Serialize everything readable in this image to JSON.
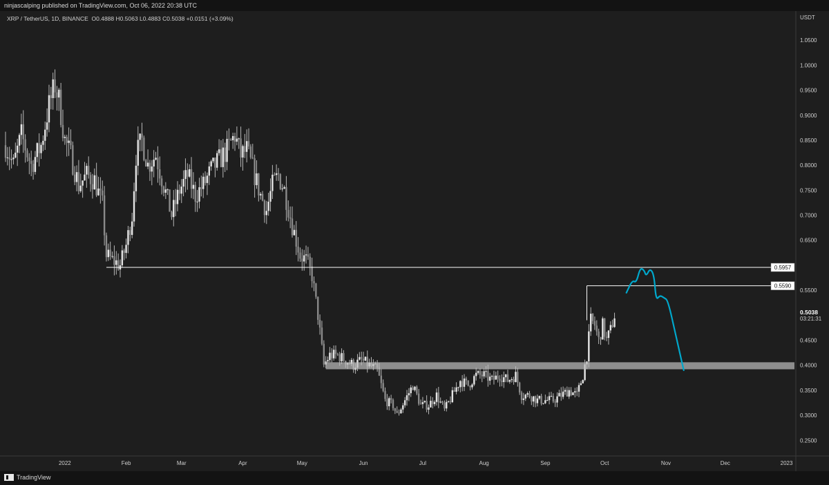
{
  "header": {
    "publisher_text": "ninjascalping published on TradingView.com, Oct 06, 2022 20:38 UTC"
  },
  "legend": {
    "pair": "XRP / TetherUS, 1D, BINANCE",
    "open": "O0.4888",
    "high": "H0.5063",
    "low": "L0.4883",
    "close": "C0.5038",
    "change": "+0.0151 (+3.09%)"
  },
  "footer": {
    "brand": "TradingView"
  },
  "colors": {
    "background": "#1e1e1e",
    "candle": "#b8b8b8",
    "level_line": "#ffffff",
    "drawing": "#00a8cc",
    "zone": "#bdbdbd"
  },
  "chart_data": {
    "type": "candlestick",
    "symbol": "XRP / TetherUS",
    "timeframe": "1D",
    "exchange": "BINANCE",
    "currency_label": "USDT",
    "ylim": [
      0.22,
      1.1
    ],
    "y_ticks": [
      "1.0500",
      "1.0000",
      "0.9500",
      "0.9000",
      "0.8500",
      "0.8000",
      "0.7500",
      "0.7000",
      "0.6500",
      "0.5500",
      "0.4500",
      "0.4000",
      "0.3500",
      "0.3000",
      "0.2500"
    ],
    "x_ticks": [
      {
        "label": "2022",
        "date": "2022-01-01"
      },
      {
        "label": "Feb",
        "date": "2022-02-01"
      },
      {
        "label": "Mar",
        "date": "2022-03-01"
      },
      {
        "label": "Apr",
        "date": "2022-04-01"
      },
      {
        "label": "May",
        "date": "2022-05-01"
      },
      {
        "label": "Jun",
        "date": "2022-06-01"
      },
      {
        "label": "Jul",
        "date": "2022-07-01"
      },
      {
        "label": "Aug",
        "date": "2022-08-01"
      },
      {
        "label": "Sep",
        "date": "2022-09-01"
      },
      {
        "label": "Oct",
        "date": "2022-10-01"
      },
      {
        "label": "Nov",
        "date": "2022-11-01"
      },
      {
        "label": "Dec",
        "date": "2022-12-01"
      },
      {
        "label": "2023",
        "date": "2023-01-01"
      }
    ],
    "x_range": [
      "2021-12-02",
      "2023-01-05"
    ],
    "price_path": [
      [
        "2021-12-02",
        0.84
      ],
      [
        "2021-12-06",
        0.8
      ],
      [
        "2021-12-10",
        0.86
      ],
      [
        "2021-12-15",
        0.8
      ],
      [
        "2021-12-20",
        0.84
      ],
      [
        "2021-12-24",
        0.92
      ],
      [
        "2021-12-27",
        0.96
      ],
      [
        "2021-12-29",
        0.93
      ],
      [
        "2022-01-01",
        0.85
      ],
      [
        "2022-01-04",
        0.82
      ],
      [
        "2022-01-08",
        0.76
      ],
      [
        "2022-01-12",
        0.78
      ],
      [
        "2022-01-16",
        0.77
      ],
      [
        "2022-01-20",
        0.72
      ],
      [
        "2022-01-22",
        0.62
      ],
      [
        "2022-01-25",
        0.61
      ],
      [
        "2022-01-29",
        0.6
      ],
      [
        "2022-02-01",
        0.64
      ],
      [
        "2022-02-04",
        0.7
      ],
      [
        "2022-02-06",
        0.82
      ],
      [
        "2022-02-09",
        0.85
      ],
      [
        "2022-02-12",
        0.8
      ],
      [
        "2022-02-16",
        0.82
      ],
      [
        "2022-02-20",
        0.76
      ],
      [
        "2022-02-24",
        0.7
      ],
      [
        "2022-02-28",
        0.75
      ],
      [
        "2022-03-04",
        0.78
      ],
      [
        "2022-03-08",
        0.74
      ],
      [
        "2022-03-12",
        0.76
      ],
      [
        "2022-03-16",
        0.79
      ],
      [
        "2022-03-20",
        0.81
      ],
      [
        "2022-03-24",
        0.83
      ],
      [
        "2022-03-28",
        0.86
      ],
      [
        "2022-03-31",
        0.82
      ],
      [
        "2022-04-03",
        0.83
      ],
      [
        "2022-04-07",
        0.78
      ],
      [
        "2022-04-10",
        0.74
      ],
      [
        "2022-04-13",
        0.71
      ],
      [
        "2022-04-16",
        0.76
      ],
      [
        "2022-04-19",
        0.78
      ],
      [
        "2022-04-22",
        0.75
      ],
      [
        "2022-04-26",
        0.68
      ],
      [
        "2022-04-30",
        0.62
      ],
      [
        "2022-05-03",
        0.61
      ],
      [
        "2022-05-06",
        0.58
      ],
      [
        "2022-05-09",
        0.5
      ],
      [
        "2022-05-12",
        0.4
      ],
      [
        "2022-05-15",
        0.42
      ],
      [
        "2022-05-19",
        0.42
      ],
      [
        "2022-05-23",
        0.41
      ],
      [
        "2022-05-27",
        0.4
      ],
      [
        "2022-05-31",
        0.41
      ],
      [
        "2022-06-04",
        0.4
      ],
      [
        "2022-06-08",
        0.39
      ],
      [
        "2022-06-12",
        0.33
      ],
      [
        "2022-06-16",
        0.32
      ],
      [
        "2022-06-18",
        0.3
      ],
      [
        "2022-06-22",
        0.33
      ],
      [
        "2022-06-26",
        0.36
      ],
      [
        "2022-06-30",
        0.32
      ],
      [
        "2022-07-04",
        0.32
      ],
      [
        "2022-07-08",
        0.34
      ],
      [
        "2022-07-12",
        0.31
      ],
      [
        "2022-07-16",
        0.34
      ],
      [
        "2022-07-20",
        0.37
      ],
      [
        "2022-07-24",
        0.36
      ],
      [
        "2022-07-28",
        0.38
      ],
      [
        "2022-08-01",
        0.38
      ],
      [
        "2022-08-05",
        0.37
      ],
      [
        "2022-08-09",
        0.38
      ],
      [
        "2022-08-13",
        0.37
      ],
      [
        "2022-08-17",
        0.38
      ],
      [
        "2022-08-20",
        0.34
      ],
      [
        "2022-08-24",
        0.34
      ],
      [
        "2022-08-28",
        0.33
      ],
      [
        "2022-09-01",
        0.33
      ],
      [
        "2022-09-05",
        0.33
      ],
      [
        "2022-09-09",
        0.34
      ],
      [
        "2022-09-13",
        0.35
      ],
      [
        "2022-09-17",
        0.34
      ],
      [
        "2022-09-20",
        0.38
      ],
      [
        "2022-09-22",
        0.42
      ],
      [
        "2022-09-24",
        0.49
      ],
      [
        "2022-09-26",
        0.48
      ],
      [
        "2022-09-28",
        0.45
      ],
      [
        "2022-09-30",
        0.48
      ],
      [
        "2022-10-02",
        0.45
      ],
      [
        "2022-10-04",
        0.47
      ],
      [
        "2022-10-06",
        0.5
      ]
    ],
    "horizontal_levels": [
      {
        "price": 0.5957,
        "label": "0.5957",
        "start_date": "2022-01-22"
      },
      {
        "price": 0.559,
        "label": "0.5590",
        "start_date": "2022-09-22"
      }
    ],
    "zone": {
      "top": 0.406,
      "bottom": 0.392,
      "start_date": "2022-05-13"
    },
    "projection_path": [
      [
        "2022-10-12",
        0.545
      ],
      [
        "2022-10-15",
        0.57
      ],
      [
        "2022-10-17",
        0.565
      ],
      [
        "2022-10-19",
        0.595
      ],
      [
        "2022-10-21",
        0.59
      ],
      [
        "2022-10-22",
        0.578
      ],
      [
        "2022-10-24",
        0.594
      ],
      [
        "2022-10-26",
        0.58
      ],
      [
        "2022-10-27",
        0.53
      ],
      [
        "2022-10-29",
        0.54
      ],
      [
        "2022-10-31",
        0.535
      ],
      [
        "2022-11-02",
        0.53
      ],
      [
        "2022-11-06",
        0.46
      ],
      [
        "2022-11-10",
        0.39
      ]
    ],
    "last_price": "0.5038",
    "countdown": "03:21:31"
  }
}
